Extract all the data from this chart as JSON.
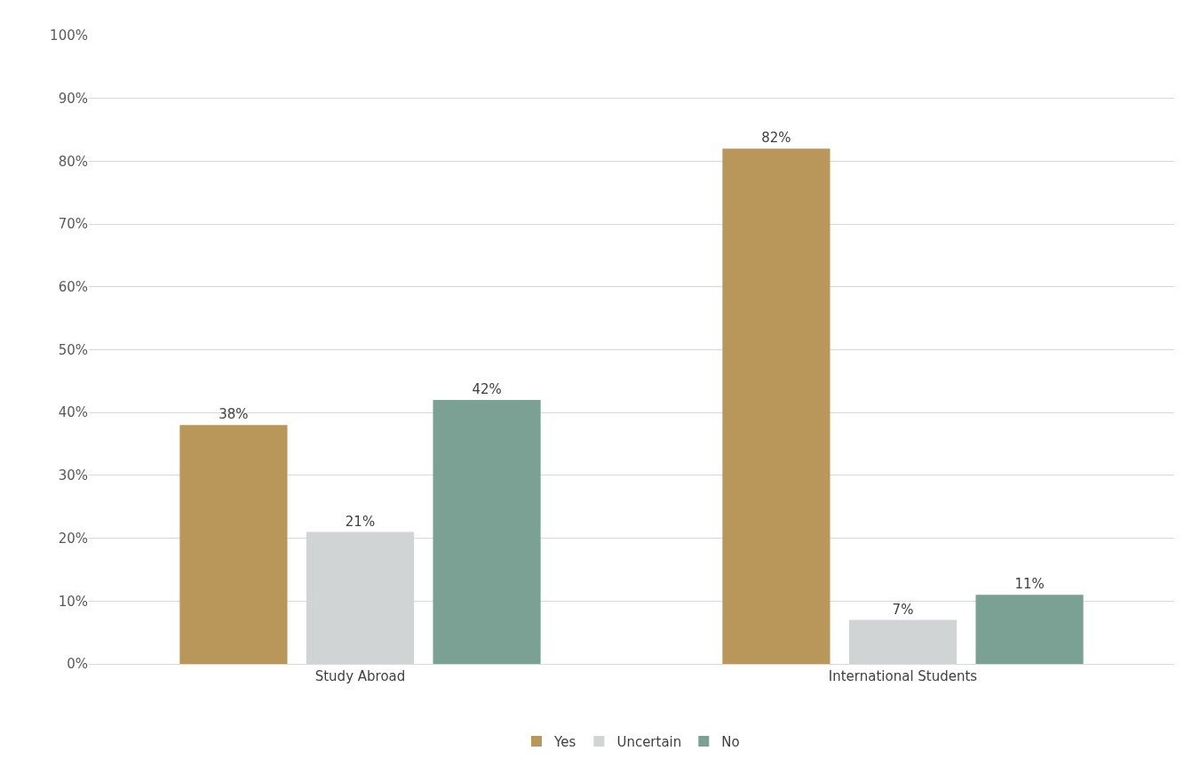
{
  "chart_data": {
    "type": "bar",
    "categories": [
      "Study Abroad",
      "International Students"
    ],
    "series": [
      {
        "name": "Yes",
        "color": "#b9965a",
        "values": [
          38,
          82
        ],
        "value_labels": [
          "38%",
          "82%"
        ]
      },
      {
        "name": "Uncertain",
        "color": "#d0d4d4",
        "values": [
          21,
          7
        ],
        "value_labels": [
          "21%",
          "7%"
        ]
      },
      {
        "name": "No",
        "color": "#7aa193",
        "values": [
          42,
          11
        ],
        "value_labels": [
          "42%",
          "11%"
        ]
      }
    ],
    "ylim": [
      0,
      100
    ],
    "yticks": [
      {
        "value": 0,
        "label": "0%"
      },
      {
        "value": 10,
        "label": "10%"
      },
      {
        "value": 20,
        "label": "20%"
      },
      {
        "value": 30,
        "label": "30%"
      },
      {
        "value": 40,
        "label": "40%"
      },
      {
        "value": 50,
        "label": "50%"
      },
      {
        "value": 60,
        "label": "60%"
      },
      {
        "value": 70,
        "label": "70%"
      },
      {
        "value": 80,
        "label": "80%"
      },
      {
        "value": 90,
        "label": "90%"
      },
      {
        "value": 100,
        "label": "100%"
      }
    ],
    "grid": "y",
    "legend": "bottom"
  }
}
